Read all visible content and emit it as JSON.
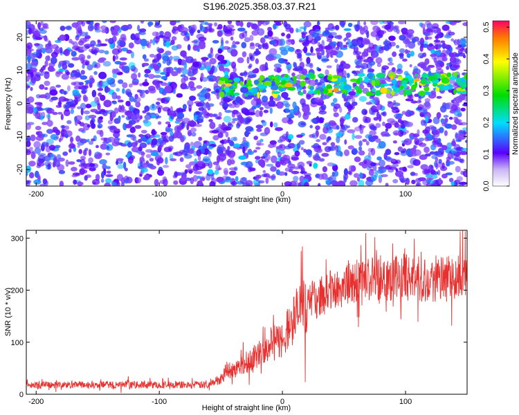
{
  "title": "S196.2025.358.03.37.R21",
  "colors": {
    "accent": "#e8302f",
    "background": "#ffffff"
  },
  "chart_data": [
    {
      "type": "heatmap",
      "xlabel": "Height of straight line (km)",
      "ylabel": "Frequency (Hz)",
      "xlim": [
        -208,
        150
      ],
      "ylim": [
        -25,
        25
      ],
      "xticks": [
        -200,
        -100,
        0,
        100
      ],
      "yticks": [
        -20,
        -10,
        0,
        10,
        20
      ],
      "colorbar": {
        "label": "Normalized spectral amplitude",
        "range": [
          0.0,
          0.52
        ],
        "ticks": [
          0.0,
          0.1,
          0.2,
          0.3,
          0.4,
          0.5
        ]
      },
      "signal_band": {
        "x_start": -50,
        "x_end": 150,
        "frequency_center": 5
      }
    },
    {
      "type": "line",
      "xlabel": "Height of straight line (km)",
      "ylabel": "SNR (10 * v/v)",
      "xlim": [
        -208,
        150
      ],
      "ylim": [
        0,
        315
      ],
      "xticks": [
        -200,
        -100,
        0,
        100
      ],
      "yticks": [
        0,
        100,
        200,
        300
      ],
      "series": [
        {
          "name": "SNR",
          "x": [
            -208,
            -150,
            -100,
            -60,
            -50,
            -45,
            -40,
            -30,
            -20,
            -15,
            -10,
            0,
            10,
            20,
            30,
            40,
            60,
            80,
            100,
            120,
            140,
            150
          ],
          "values": [
            18,
            18,
            18,
            18,
            30,
            50,
            45,
            60,
            75,
            90,
            95,
            105,
            150,
            175,
            185,
            200,
            215,
            225,
            225,
            220,
            220,
            230
          ]
        }
      ]
    }
  ]
}
